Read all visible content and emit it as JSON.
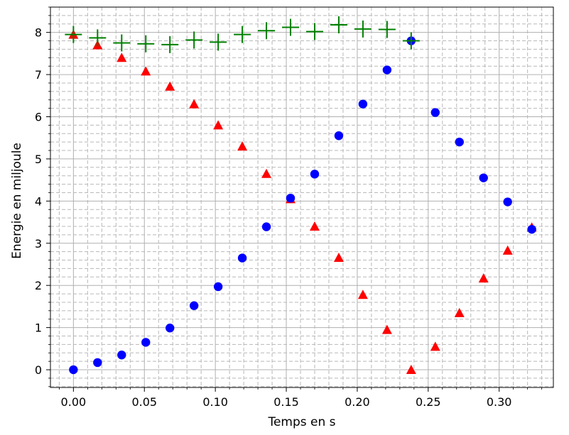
{
  "chart_data": {
    "type": "scatter",
    "title": "",
    "xlabel": "Temps en s",
    "ylabel": "Energie en miljoule",
    "xlim": [
      -0.0162,
      0.3382
    ],
    "ylim": [
      -0.42,
      8.6
    ],
    "x_ticks": [
      0.0,
      0.05,
      0.1,
      0.15,
      0.2,
      0.25,
      0.3
    ],
    "x_tick_labels": [
      "0.00",
      "0.05",
      "0.10",
      "0.15",
      "0.20",
      "0.25",
      "0.30"
    ],
    "y_ticks": [
      0,
      1,
      2,
      3,
      4,
      5,
      6,
      7,
      8
    ],
    "y_tick_labels": [
      "0",
      "1",
      "2",
      "3",
      "4",
      "5",
      "6",
      "7",
      "8"
    ],
    "grid": {
      "major": true,
      "minor": true
    },
    "legend": null,
    "series": [
      {
        "marker": "triangle",
        "color": "#ff0000",
        "x": [
          0.0,
          0.017,
          0.034,
          0.051,
          0.068,
          0.085,
          0.102,
          0.119,
          0.136,
          0.153,
          0.17,
          0.187,
          0.204,
          0.221,
          0.238,
          0.255,
          0.272,
          0.289,
          0.306,
          0.323
        ],
        "y": [
          7.95,
          7.7,
          7.4,
          7.08,
          6.72,
          6.3,
          5.8,
          5.3,
          4.65,
          4.05,
          3.4,
          2.66,
          1.78,
          0.95,
          0.0,
          0.55,
          1.35,
          2.17,
          2.83,
          3.38
        ]
      },
      {
        "marker": "circle",
        "color": "#0000ff",
        "x": [
          0.0,
          0.017,
          0.034,
          0.051,
          0.068,
          0.085,
          0.102,
          0.119,
          0.136,
          0.153,
          0.17,
          0.187,
          0.204,
          0.221,
          0.238,
          0.255,
          0.272,
          0.289,
          0.306,
          0.323
        ],
        "y": [
          0.0,
          0.17,
          0.35,
          0.65,
          0.99,
          1.52,
          1.97,
          2.65,
          3.39,
          4.07,
          4.64,
          5.55,
          6.3,
          7.11,
          7.8,
          6.1,
          5.4,
          4.55,
          3.98,
          3.33
        ]
      },
      {
        "marker": "plus",
        "color": "#008000",
        "x": [
          0.0,
          0.017,
          0.034,
          0.051,
          0.068,
          0.085,
          0.102,
          0.119,
          0.136,
          0.153,
          0.17,
          0.187,
          0.204,
          0.221,
          0.238
        ],
        "y": [
          7.95,
          7.87,
          7.75,
          7.73,
          7.71,
          7.82,
          7.77,
          7.95,
          8.04,
          8.12,
          8.02,
          8.18,
          8.08,
          8.07,
          7.8
        ]
      }
    ]
  }
}
